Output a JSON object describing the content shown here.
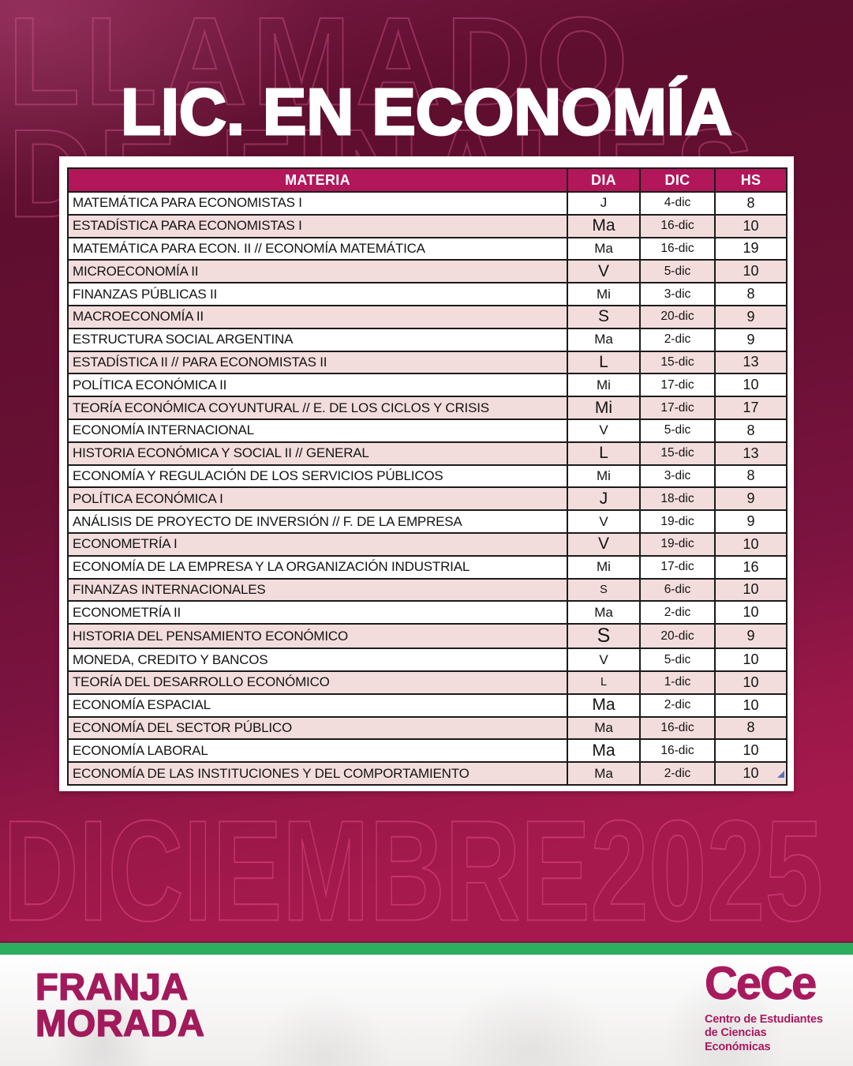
{
  "poster": {
    "title": "LIC. EN ECONOMÍA",
    "watermark_top_line1": "LLAMADO",
    "watermark_top_line2": "DE FINALES",
    "watermark_bottom": "DICIEMBRE2025",
    "colors": {
      "background_dark_maroon": "#5e0e2e",
      "background_crimson": "#a5194d",
      "table_header_magenta": "#b2175a",
      "row_pink": "#f3dcdc",
      "green_divider": "#2ead5f",
      "brand_magenta": "#a21a5b"
    }
  },
  "table": {
    "headers": [
      "MATERIA",
      "DIA",
      "DIC",
      "HS"
    ],
    "rows": [
      {
        "materia": "MATEMÁTICA PARA ECONOMISTAS I",
        "dia": "J",
        "dic": "4-dic",
        "hs": "8",
        "day_size": "m"
      },
      {
        "materia": "ESTADÍSTICA PARA ECONOMISTAS I",
        "dia": "Ma",
        "dic": "16-dic",
        "hs": "10",
        "day_size": "l"
      },
      {
        "materia": "MATEMÁTICA PARA ECON. II // ECONOMÍA MATEMÁTICA",
        "dia": "Ma",
        "dic": "16-dic",
        "hs": "19",
        "day_size": "m"
      },
      {
        "materia": "MICROECONOMÍA II",
        "dia": "V",
        "dic": "5-dic",
        "hs": "10",
        "day_size": "l"
      },
      {
        "materia": "FINANZAS PÚBLICAS II",
        "dia": "Mi",
        "dic": "3-dic",
        "hs": "8",
        "day_size": "m"
      },
      {
        "materia": "MACROECONOMÍA II",
        "dia": "S",
        "dic": "20-dic",
        "hs": "9",
        "day_size": "l"
      },
      {
        "materia": "ESTRUCTURA SOCIAL ARGENTINA",
        "dia": "Ma",
        "dic": "2-dic",
        "hs": "9",
        "day_size": "m"
      },
      {
        "materia": "ESTADÍSTICA II // PARA ECONOMISTAS II",
        "dia": "L",
        "dic": "15-dic",
        "hs": "13",
        "day_size": "l"
      },
      {
        "materia": "POLÍTICA ECONÓMICA II",
        "dia": "Mi",
        "dic": "17-dic",
        "hs": "10",
        "day_size": "m"
      },
      {
        "materia": "TEORÍA ECONÓMICA COYUNTURAL // E. DE LOS CICLOS Y CRISIS",
        "dia": "Mi",
        "dic": "17-dic",
        "hs": "17",
        "day_size": "l"
      },
      {
        "materia": "ECONOMÍA INTERNACIONAL",
        "dia": "V",
        "dic": "5-dic",
        "hs": "8",
        "day_size": "m"
      },
      {
        "materia": "HISTORIA ECONÓMICA Y SOCIAL II // GENERAL",
        "dia": "L",
        "dic": "15-dic",
        "hs": "13",
        "day_size": "l"
      },
      {
        "materia": "ECONOMÍA Y REGULACIÓN DE LOS SERVICIOS PÚBLICOS",
        "dia": "Mi",
        "dic": "3-dic",
        "hs": "8",
        "day_size": "m"
      },
      {
        "materia": "POLÍTICA ECONÓMICA I",
        "dia": "J",
        "dic": "18-dic",
        "hs": "9",
        "day_size": "l"
      },
      {
        "materia": "ANÁLISIS DE PROYECTO DE INVERSIÓN // F. DE LA EMPRESA",
        "dia": "V",
        "dic": "19-dic",
        "hs": "9",
        "day_size": "m"
      },
      {
        "materia": "ECONOMETRÍA I",
        "dia": "V",
        "dic": "19-dic",
        "hs": "10",
        "day_size": "l"
      },
      {
        "materia": "ECONOMÍA DE LA EMPRESA Y LA ORGANIZACIÓN INDUSTRIAL",
        "dia": "Mi",
        "dic": "17-dic",
        "hs": "16",
        "day_size": "m"
      },
      {
        "materia": "FINANZAS INTERNACIONALES",
        "dia": "S",
        "dic": "6-dic",
        "hs": "10",
        "day_size": "s"
      },
      {
        "materia": "ECONOMETRÍA II",
        "dia": "Ma",
        "dic": "2-dic",
        "hs": "10",
        "day_size": "m"
      },
      {
        "materia": "HISTORIA DEL PENSAMIENTO ECONÓMICO",
        "dia": "S",
        "dic": "20-dic",
        "hs": "9",
        "day_size": "xl"
      },
      {
        "materia": "MONEDA, CREDITO Y BANCOS",
        "dia": "V",
        "dic": "5-dic",
        "hs": "10",
        "day_size": "m"
      },
      {
        "materia": "TEORÍA DEL DESARROLLO ECONÓMICO",
        "dia": "L",
        "dic": "1-dic",
        "hs": "10",
        "day_size": "s"
      },
      {
        "materia": "ECONOMÍA ESPACIAL",
        "dia": "Ma",
        "dic": "2-dic",
        "hs": "10",
        "day_size": "l"
      },
      {
        "materia": "ECONOMÍA DEL SECTOR PÚBLICO",
        "dia": "Ma",
        "dic": "16-dic",
        "hs": "8",
        "day_size": "m"
      },
      {
        "materia": "ECONOMÍA LABORAL",
        "dia": "Ma",
        "dic": "16-dic",
        "hs": "10",
        "day_size": "l"
      },
      {
        "materia": "ECONOMÍA DE LAS INSTITUCIONES Y DEL COMPORTAMIENTO",
        "dia": "Ma",
        "dic": "2-dic",
        "hs": "10",
        "day_size": "m"
      }
    ]
  },
  "footer": {
    "brand_line1": "FRANJA",
    "brand_line2": "MORADA",
    "logo_text": "CeCe",
    "logo_sub1": "Centro de Estudiantes",
    "logo_sub2": "de Ciencias Económicas"
  }
}
